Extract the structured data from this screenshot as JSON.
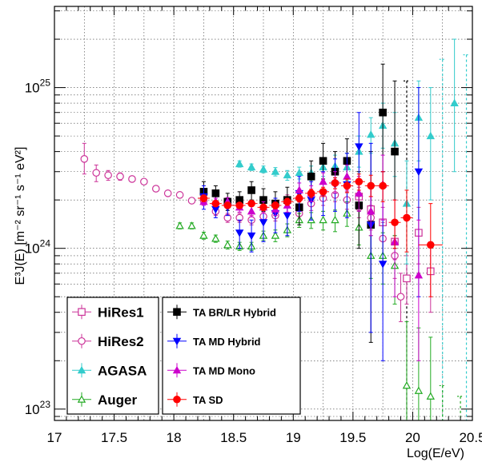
{
  "chart_data": {
    "type": "scatter",
    "xlabel": "Log(E/eV)",
    "ylabel": "E³J(E) [m⁻² sr⁻¹ s⁻¹ eV²]",
    "x_ticks": [
      "17",
      "17.5",
      "18",
      "18.5",
      "19",
      "19.5",
      "20",
      "20.5"
    ],
    "xlim": [
      17.0,
      20.5
    ],
    "ylim": [
      8.5e+22,
      3.2e+25
    ],
    "y_scale": "log",
    "grid": true,
    "legends": [
      {
        "placement": "bottom-left",
        "entries": [
          "HiRes1",
          "HiRes2",
          "AGASA",
          "Auger"
        ]
      },
      {
        "placement": "bottom-center",
        "entries": [
          "TA BR/LR Hybrid",
          "TA MD Hybrid",
          "TA MD Mono",
          "TA SD"
        ]
      }
    ],
    "series": [
      {
        "name": "HiRes1",
        "color": "#cc3399",
        "marker": "open-square",
        "points": [
          [
            19.55,
            2.1e+24,
            1.85e+24,
            2.4e+24
          ],
          [
            19.65,
            1.75e+24,
            1.45e+24,
            2.1e+24
          ],
          [
            19.75,
            1.45e+24,
            1.15e+24,
            1.8e+24
          ],
          [
            19.85,
            1.1e+24,
            8.5e+23,
            1.4e+24
          ],
          [
            19.95,
            6.5e+23,
            4.5e+23,
            9e+23
          ],
          [
            20.05,
            1.25e+24,
            8e+23,
            1.8e+24
          ],
          [
            20.15,
            7.2e+23,
            4e+23,
            1.1e+24
          ]
        ]
      },
      {
        "name": "HiRes2",
        "color": "#cc3399",
        "marker": "open-circle",
        "points": [
          [
            17.25,
            3.6e+24,
            2.9e+24,
            4.5e+24
          ],
          [
            17.35,
            2.95e+24,
            2.6e+24,
            3.3e+24
          ],
          [
            17.45,
            2.85e+24,
            2.65e+24,
            3.05e+24
          ],
          [
            17.55,
            2.8e+24,
            2.65e+24,
            2.95e+24
          ],
          [
            17.65,
            2.7e+24,
            2.6e+24,
            2.8e+24
          ],
          [
            17.75,
            2.6e+24,
            2.5e+24,
            2.7e+24
          ],
          [
            17.85,
            2.35e+24,
            2.27e+24,
            2.43e+24
          ],
          [
            17.95,
            2.2e+24,
            2.12e+24,
            2.28e+24
          ],
          [
            18.05,
            2.15e+24,
            2.07e+24,
            2.23e+24
          ],
          [
            18.15,
            1.98e+24,
            1.9e+24,
            2.06e+24
          ],
          [
            18.25,
            1.98e+24,
            1.9e+24,
            2.06e+24
          ],
          [
            18.35,
            1.7e+24,
            1.6e+24,
            1.8e+24
          ],
          [
            18.45,
            1.55e+24,
            1.45e+24,
            1.65e+24
          ],
          [
            18.55,
            1.55e+24,
            1.45e+24,
            1.65e+24
          ],
          [
            18.65,
            1.5e+24,
            1.4e+24,
            1.6e+24
          ],
          [
            18.75,
            1.58e+24,
            1.48e+24,
            1.68e+24
          ],
          [
            18.85,
            1.6e+24,
            1.48e+24,
            1.72e+24
          ],
          [
            18.95,
            2e+24,
            1.85e+24,
            2.15e+24
          ],
          [
            19.05,
            1.65e+24,
            1.5e+24,
            1.8e+24
          ],
          [
            19.15,
            1.9e+24,
            1.72e+24,
            2.08e+24
          ],
          [
            19.25,
            2.05e+24,
            1.85e+24,
            2.25e+24
          ],
          [
            19.35,
            2.15e+24,
            1.95e+24,
            2.35e+24
          ],
          [
            19.45,
            2e+24,
            1.75e+24,
            2.25e+24
          ],
          [
            19.55,
            1.8e+24,
            1.55e+24,
            2.1e+24
          ],
          [
            19.65,
            1.55e+24,
            1.3e+24,
            1.85e+24
          ],
          [
            19.75,
            1.15e+24,
            9e+23,
            1.45e+24
          ],
          [
            19.85,
            9e+23,
            6.5e+23,
            1.2e+24
          ],
          [
            19.9,
            5e+23,
            3.5e+23,
            7e+23
          ]
        ]
      },
      {
        "name": "AGASA",
        "color": "#33cccc",
        "marker": "filled-triangle-up",
        "points": [
          [
            18.55,
            3.35e+24,
            3.2e+24,
            3.5e+24
          ],
          [
            18.65,
            3.2e+24,
            3.05e+24,
            3.35e+24
          ],
          [
            18.75,
            3.1e+24,
            2.95e+24,
            3.25e+24
          ],
          [
            18.85,
            3e+24,
            2.82e+24,
            3.18e+24
          ],
          [
            18.95,
            2.85e+24,
            2.65e+24,
            3.05e+24
          ],
          [
            19.05,
            2.95e+24,
            2.7e+24,
            3.2e+24
          ],
          [
            19.15,
            2.95e+24,
            2.65e+24,
            3.25e+24
          ],
          [
            19.25,
            3.2e+24,
            2.8e+24,
            3.6e+24
          ],
          [
            19.35,
            3.25e+24,
            2.75e+24,
            3.8e+24
          ],
          [
            19.45,
            3.2e+24,
            2.65e+24,
            3.9e+24
          ],
          [
            19.55,
            4e+24,
            3.2e+24,
            5e+24
          ],
          [
            19.65,
            5.1e+24,
            3.9e+24,
            6.5e+24
          ],
          [
            19.75,
            5.8e+24,
            4.2e+24,
            8e+24
          ],
          [
            19.85,
            4.5e+24,
            2.8e+24,
            7e+24
          ],
          [
            19.95,
            1.9e+24,
            8e+23,
            3.5e+24
          ],
          [
            20.05,
            6.5e+24,
            3.5e+24,
            1.1e+25
          ],
          [
            20.15,
            5e+24,
            2e+24,
            1e+25
          ],
          [
            20.35,
            8e+24,
            3e+24,
            2e+25
          ]
        ]
      },
      {
        "name": "Auger",
        "color": "#22aa22",
        "marker": "open-triangle-up",
        "points": [
          [
            18.05,
            1.38e+24,
            1.32e+24,
            1.44e+24
          ],
          [
            18.15,
            1.38e+24,
            1.32e+24,
            1.44e+24
          ],
          [
            18.25,
            1.2e+24,
            1.14e+24,
            1.26e+24
          ],
          [
            18.35,
            1.15e+24,
            1.09e+24,
            1.21e+24
          ],
          [
            18.45,
            1.05e+24,
            9.9e+23,
            1.11e+24
          ],
          [
            18.55,
            1.03e+24,
            9.7e+23,
            1.09e+24
          ],
          [
            18.65,
            1.03e+24,
            9.7e+23,
            1.09e+24
          ],
          [
            18.75,
            1.2e+24,
            1.12e+24,
            1.28e+24
          ],
          [
            18.85,
            1.2e+24,
            1.1e+24,
            1.3e+24
          ],
          [
            18.95,
            1.3e+24,
            1.18e+24,
            1.42e+24
          ],
          [
            19.05,
            1.5e+24,
            1.35e+24,
            1.65e+24
          ],
          [
            19.15,
            1.5e+24,
            1.33e+24,
            1.67e+24
          ],
          [
            19.25,
            1.5e+24,
            1.3e+24,
            1.7e+24
          ],
          [
            19.35,
            1.5e+24,
            1.27e+24,
            1.73e+24
          ],
          [
            19.45,
            1.65e+24,
            1.37e+24,
            1.95e+24
          ],
          [
            19.55,
            1.35e+24,
            1.05e+24,
            1.7e+24
          ],
          [
            19.65,
            9e+23,
            6.5e+23,
            1.2e+24
          ],
          [
            19.75,
            9e+23,
            6e+23,
            1.25e+24
          ],
          [
            19.85,
            7.8e+23,
            4.5e+23,
            1.2e+24
          ],
          [
            19.95,
            1.4e+23,
            5e+22,
            3.5e+23
          ],
          [
            20.05,
            1.3e+23,
            5e+22,
            3.2e+23
          ],
          [
            20.15,
            1.2e+23,
            5e+22,
            2.8e+23
          ]
        ]
      },
      {
        "name": "TA BR/LR Hybrid",
        "color": "#000000",
        "marker": "filled-square",
        "points": [
          [
            18.25,
            2.25e+24,
            1.9e+24,
            2.6e+24
          ],
          [
            18.35,
            2.2e+24,
            1.95e+24,
            2.45e+24
          ],
          [
            18.45,
            1.95e+24,
            1.72e+24,
            2.2e+24
          ],
          [
            18.55,
            2e+24,
            1.75e+24,
            2.25e+24
          ],
          [
            18.65,
            2.3e+24,
            2e+24,
            2.6e+24
          ],
          [
            18.75,
            2e+24,
            1.7e+24,
            2.35e+24
          ],
          [
            18.85,
            1.9e+24,
            1.6e+24,
            2.25e+24
          ],
          [
            18.95,
            2e+24,
            1.6e+24,
            2.4e+24
          ],
          [
            19.05,
            1.8e+24,
            1.4e+24,
            2.3e+24
          ],
          [
            19.15,
            2.8e+24,
            2.2e+24,
            3.5e+24
          ],
          [
            19.25,
            3.5e+24,
            2.7e+24,
            4.5e+24
          ],
          [
            19.35,
            3e+24,
            2.2e+24,
            4e+24
          ],
          [
            19.45,
            3.5e+24,
            2.4e+24,
            4.8e+24
          ],
          [
            19.55,
            1.85e+24,
            1e+24,
            3e+24
          ],
          [
            19.65,
            1.4e+24,
            2.6e+23,
            4e+24
          ],
          [
            19.75,
            7e+24,
            3e+24,
            1.4e+25
          ],
          [
            19.85,
            4e+24,
            1e+24,
            1.1e+25
          ]
        ]
      },
      {
        "name": "TA MD Hybrid",
        "color": "#0000ff",
        "marker": "filled-triangle-down",
        "points": [
          [
            18.25,
            2.1e+24,
            1.75e+24,
            2.45e+24
          ],
          [
            18.35,
            1.75e+24,
            1.55e+24,
            1.95e+24
          ],
          [
            18.45,
            1.8e+24,
            1.6e+24,
            2e+24
          ],
          [
            18.55,
            1.25e+24,
            1e+24,
            1.5e+24
          ],
          [
            18.65,
            1.2e+24,
            9.5e+23,
            1.5e+24
          ],
          [
            18.75,
            1.45e+24,
            1.1e+24,
            1.8e+24
          ],
          [
            18.85,
            1.65e+24,
            1.25e+24,
            2.05e+24
          ],
          [
            18.95,
            1.6e+24,
            1.2e+24,
            2e+24
          ],
          [
            19.05,
            2.2e+24,
            1.7e+24,
            2.8e+24
          ],
          [
            19.15,
            2e+24,
            1.5e+24,
            2.6e+24
          ],
          [
            19.25,
            2.2e+24,
            1.6e+24,
            3e+24
          ],
          [
            19.35,
            2.5e+24,
            1.7e+24,
            3.6e+24
          ],
          [
            19.45,
            2.5e+24,
            1.55e+24,
            3.9e+24
          ],
          [
            19.55,
            4.3e+24,
            2.5e+24,
            7e+24
          ],
          [
            19.65,
            1.4e+24,
            3e+23,
            4.5e+24
          ],
          [
            19.75,
            8e+23,
            2e+23,
            3e+24
          ],
          [
            20.05,
            3e+24,
            5e+23,
            1e+25
          ]
        ]
      },
      {
        "name": "TA MD Mono",
        "color": "#cc00cc",
        "marker": "filled-triangle-up",
        "points": [
          [
            18.25,
            1.95e+24,
            1.85e+24,
            2.05e+24
          ],
          [
            18.35,
            1.95e+24,
            1.85e+24,
            2.05e+24
          ],
          [
            18.45,
            1.95e+24,
            1.83e+24,
            2.07e+24
          ],
          [
            18.55,
            1.8e+24,
            1.68e+24,
            1.92e+24
          ],
          [
            18.65,
            1.7e+24,
            1.57e+24,
            1.83e+24
          ],
          [
            18.75,
            1.8e+24,
            1.65e+24,
            1.95e+24
          ],
          [
            18.85,
            1.75e+24,
            1.6e+24,
            1.9e+24
          ],
          [
            18.95,
            1.85e+24,
            1.68e+24,
            2.02e+24
          ],
          [
            19.05,
            2.3e+24,
            2.05e+24,
            2.55e+24
          ],
          [
            19.15,
            2.2e+24,
            1.95e+24,
            2.45e+24
          ],
          [
            19.25,
            2.6e+24,
            2.25e+24,
            2.95e+24
          ],
          [
            19.35,
            2.6e+24,
            2.2e+24,
            3e+24
          ],
          [
            19.45,
            2.8e+24,
            2.3e+24,
            3.3e+24
          ],
          [
            19.55,
            2.2e+24,
            1.7e+24,
            2.8e+24
          ],
          [
            19.65,
            1.7e+24,
            1.2e+24,
            2.4e+24
          ],
          [
            19.75,
            2.5e+24,
            1.5e+24,
            3.8e+24
          ],
          [
            19.85,
            1.1e+24,
            5e+23,
            2e+24
          ],
          [
            20.05,
            6.8e+23,
            2e+23,
            1.5e+24
          ]
        ]
      },
      {
        "name": "TA SD",
        "color": "#ff0000",
        "marker": "filled-circle",
        "points": [
          [
            18.25,
            2.05e+24,
            1.95e+24,
            2.15e+24,
            0.05
          ],
          [
            18.35,
            1.9e+24,
            1.82e+24,
            1.98e+24,
            0.05
          ],
          [
            18.45,
            1.85e+24,
            1.78e+24,
            1.92e+24,
            0.05
          ],
          [
            18.55,
            1.85e+24,
            1.78e+24,
            1.92e+24,
            0.05
          ],
          [
            18.65,
            1.9e+24,
            1.82e+24,
            1.98e+24,
            0.05
          ],
          [
            18.75,
            1.8e+24,
            1.72e+24,
            1.88e+24,
            0.05
          ],
          [
            18.85,
            1.85e+24,
            1.76e+24,
            1.94e+24,
            0.05
          ],
          [
            18.95,
            1.95e+24,
            1.85e+24,
            2.05e+24,
            0.05
          ],
          [
            19.05,
            2.05e+24,
            1.94e+24,
            2.16e+24,
            0.05
          ],
          [
            19.15,
            2.2e+24,
            2.07e+24,
            2.33e+24,
            0.05
          ],
          [
            19.25,
            2.25e+24,
            2.1e+24,
            2.4e+24,
            0.05
          ],
          [
            19.35,
            2.55e+24,
            2.35e+24,
            2.75e+24,
            0.05
          ],
          [
            19.45,
            2.45e+24,
            2.22e+24,
            2.7e+24,
            0.05
          ],
          [
            19.55,
            2.6e+24,
            2.3e+24,
            2.9e+24,
            0.05
          ],
          [
            19.65,
            2.45e+24,
            2.1e+24,
            2.85e+24,
            0.05
          ],
          [
            19.75,
            2.45e+24,
            1.95e+24,
            3e+24,
            0.05
          ],
          [
            19.85,
            1.45e+24,
            1e+24,
            2e+24,
            0.05
          ],
          [
            19.95,
            1.55e+24,
            9.5e+23,
            2.3e+24,
            0.05
          ],
          [
            20.15,
            1.05e+24,
            5e+23,
            1.9e+24,
            0.1
          ]
        ]
      }
    ],
    "upper_limits": [
      {
        "series": "TA BR/LR Hybrid",
        "x": 19.95,
        "upper": 1.1e+25,
        "style": "dashed",
        "color": "#000000"
      },
      {
        "series": "AGASA",
        "x": 20.25,
        "upper": 1.5e+25,
        "style": "dashed",
        "color": "#33cccc"
      },
      {
        "series": "AGASA",
        "x": 20.45,
        "upper": 1.6e+25,
        "style": "dashed",
        "color": "#33cccc"
      },
      {
        "series": "Auger",
        "x": 20.25,
        "upper": 1.4e+23,
        "style": "dashed",
        "color": "#22aa22"
      },
      {
        "series": "Auger",
        "x": 20.4,
        "upper": 1.2e+23,
        "style": "dashed",
        "color": "#22aa22"
      }
    ]
  }
}
